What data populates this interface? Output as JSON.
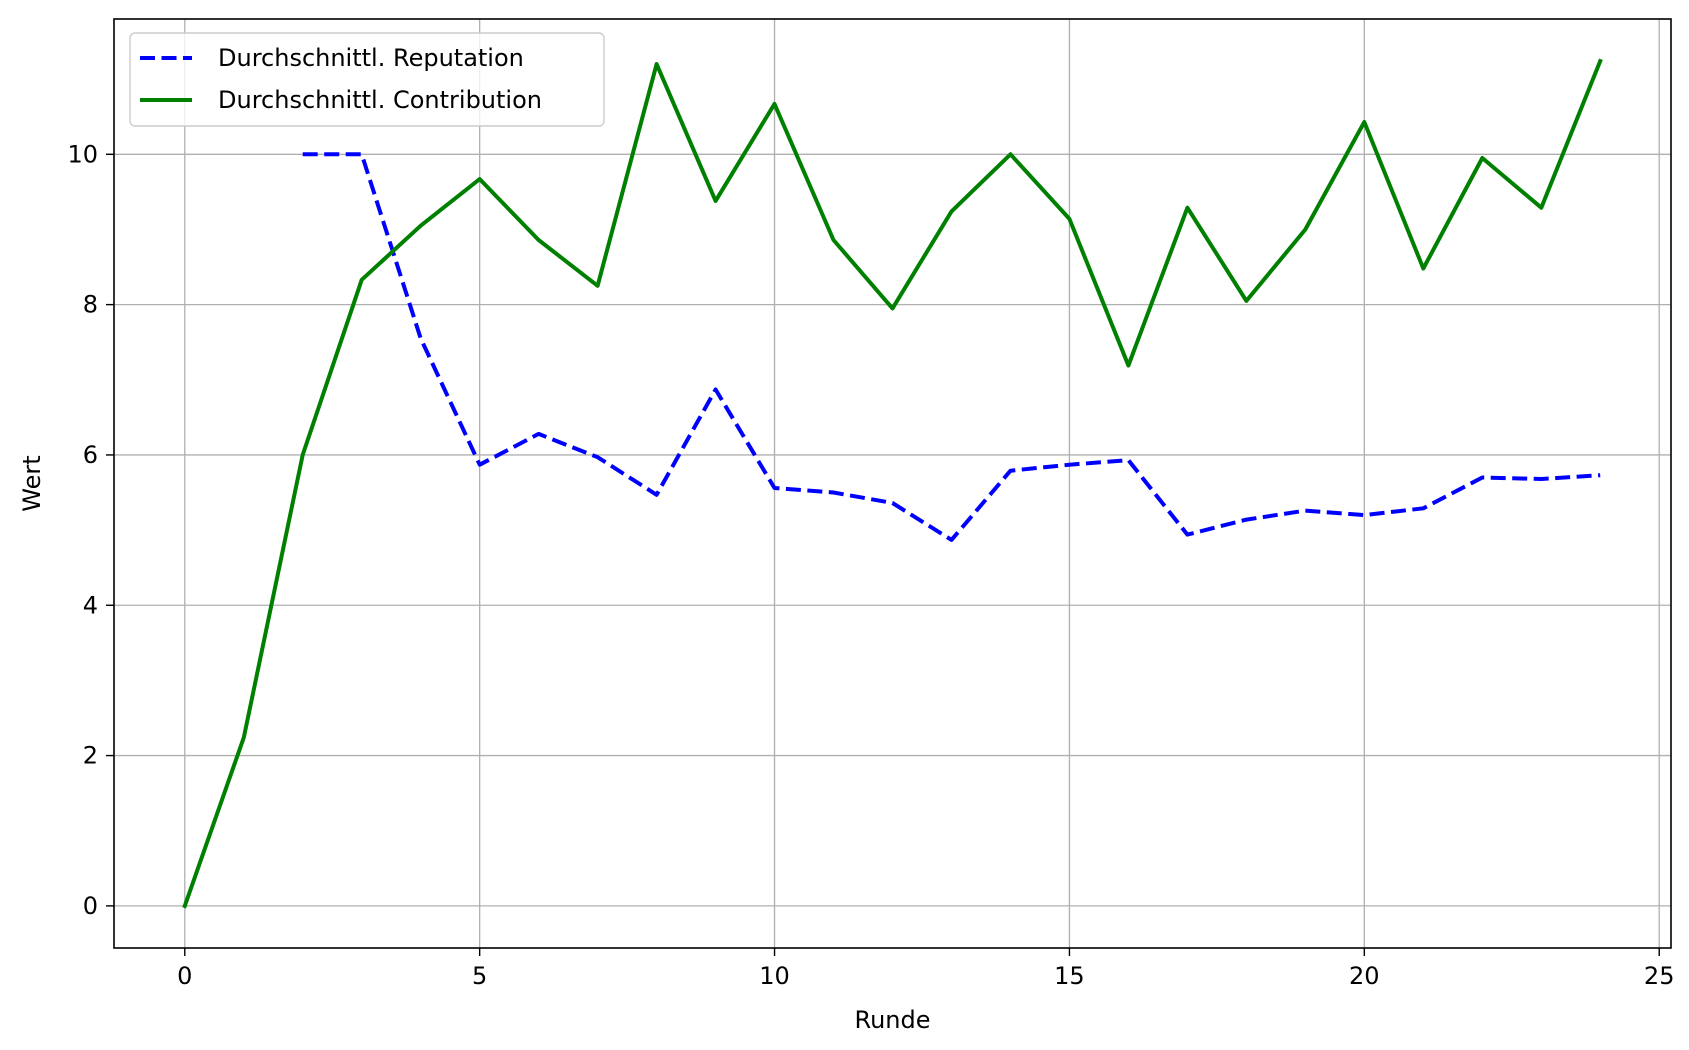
{
  "chart_data": {
    "type": "line",
    "xlabel": "Runde",
    "ylabel": "Wert",
    "xlim": [
      -1.2,
      25.2
    ],
    "ylim": [
      -0.56,
      11.8
    ],
    "xticks": [
      0,
      5,
      10,
      15,
      20,
      25
    ],
    "yticks": [
      0,
      2,
      4,
      6,
      8,
      10
    ],
    "grid": true,
    "legend_position": "upper-left",
    "series": [
      {
        "name": "Durchschnittl. Reputation",
        "color": "#0000ff",
        "linestyle": "dashed",
        "x": [
          2,
          3,
          4,
          5,
          6,
          7,
          8,
          9,
          10,
          11,
          12,
          13,
          14,
          15,
          16,
          17,
          18,
          19,
          20,
          21,
          22,
          23,
          24
        ],
        "values": [
          10.0,
          10.0,
          7.55,
          5.87,
          6.28,
          5.97,
          5.47,
          6.87,
          5.56,
          5.5,
          5.36,
          4.87,
          5.79,
          5.87,
          5.93,
          4.94,
          5.14,
          5.26,
          5.2,
          5.29,
          5.7,
          5.68,
          5.73
        ]
      },
      {
        "name": "Durchschnittl. Contribution",
        "color": "#008000",
        "linestyle": "solid",
        "x": [
          0,
          1,
          2,
          3,
          4,
          5,
          6,
          7,
          8,
          9,
          10,
          11,
          12,
          13,
          14,
          15,
          16,
          17,
          18,
          19,
          20,
          21,
          22,
          23,
          24
        ],
        "values": [
          0.0,
          2.24,
          6.0,
          8.33,
          9.05,
          9.67,
          8.86,
          8.25,
          11.2,
          9.38,
          10.67,
          8.86,
          7.95,
          9.24,
          10.0,
          9.14,
          7.19,
          9.29,
          8.05,
          9.0,
          10.43,
          8.48,
          9.95,
          9.29,
          11.24
        ]
      }
    ]
  }
}
